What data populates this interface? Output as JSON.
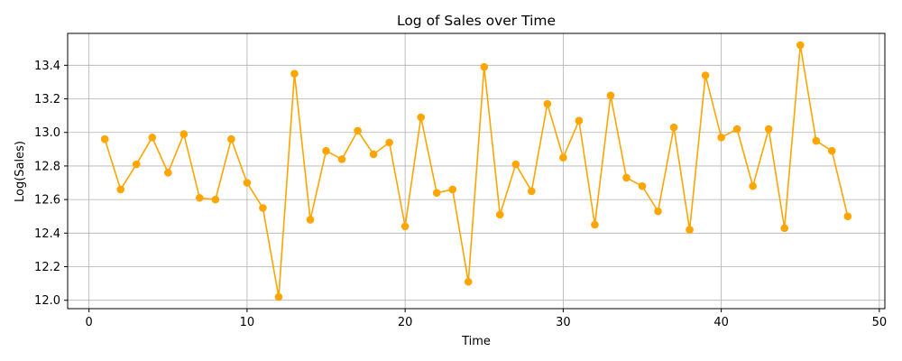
{
  "chart_data": {
    "type": "line",
    "title": "Log of Sales over Time",
    "xlabel": "Time",
    "ylabel": "Log(Sales)",
    "xlim": [
      -1.35,
      50.35
    ],
    "ylim": [
      11.95,
      13.59
    ],
    "xticks": [
      0,
      10,
      20,
      30,
      40,
      50
    ],
    "yticks": [
      12.0,
      12.2,
      12.4,
      12.6,
      12.8,
      13.0,
      13.2,
      13.4
    ],
    "ytick_labels": [
      "12.0",
      "12.2",
      "12.4",
      "12.6",
      "12.8",
      "13.0",
      "13.2",
      "13.4"
    ],
    "grid": true,
    "color": "#ffa500",
    "marker": "circle",
    "x": [
      1,
      2,
      3,
      4,
      5,
      6,
      7,
      8,
      9,
      10,
      11,
      12,
      13,
      14,
      15,
      16,
      17,
      18,
      19,
      20,
      21,
      22,
      23,
      24,
      25,
      26,
      27,
      28,
      29,
      30,
      31,
      32,
      33,
      34,
      35,
      36,
      37,
      38,
      39,
      40,
      41,
      42,
      43,
      44,
      45,
      46,
      47,
      48
    ],
    "y": [
      12.96,
      12.66,
      12.81,
      12.97,
      12.76,
      12.99,
      12.61,
      12.6,
      12.96,
      12.7,
      12.55,
      12.02,
      13.35,
      12.48,
      12.89,
      12.84,
      13.01,
      12.87,
      12.94,
      12.44,
      13.09,
      12.64,
      12.66,
      12.11,
      13.39,
      12.51,
      12.81,
      12.65,
      13.17,
      12.85,
      13.07,
      12.45,
      13.22,
      12.73,
      12.68,
      12.53,
      13.03,
      12.42,
      13.34,
      12.97,
      13.02,
      12.68,
      13.02,
      12.43,
      13.52,
      12.95,
      12.89,
      12.5
    ]
  }
}
